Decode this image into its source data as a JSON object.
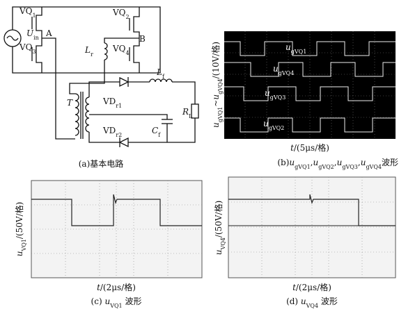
{
  "circuit": {
    "labels": [
      {
        "text": "VQ",
        "sub": "1"
      },
      {
        "text": "VQ",
        "sub": "2"
      },
      {
        "text": "VQ",
        "sub": "3"
      },
      {
        "text": "VQ",
        "sub": "4"
      },
      {
        "text": "U",
        "sub": "in"
      },
      {
        "text": "A"
      },
      {
        "text": "B"
      },
      {
        "text": "L",
        "sub": "r"
      },
      {
        "text": "T"
      },
      {
        "text": "VD",
        "sub": "r1"
      },
      {
        "text": "VD",
        "sub": "r2"
      },
      {
        "text": "L",
        "sub": "f"
      },
      {
        "text": "C",
        "sub": "f"
      },
      {
        "text": "R",
        "sub": "L"
      }
    ],
    "caption": [
      {
        "text": "(a)基本电路"
      }
    ]
  },
  "panel_b": {
    "traces": [
      {
        "text": "u",
        "sub": "gVQ1"
      },
      {
        "text": "u",
        "sub": "gVQ4"
      },
      {
        "text": "u",
        "sub": "gVQ3"
      },
      {
        "text": "u",
        "sub": "gVQ2"
      }
    ],
    "y_label": [
      {
        "text": "u",
        "sub": "gVQ1"
      },
      {
        "text": "~"
      },
      {
        "text": "u",
        "sub": "gVQ4"
      },
      {
        "text": "/(10V/格)"
      }
    ],
    "x_label": [
      {
        "text": "t"
      },
      {
        "text": "/(5μs/格)"
      }
    ],
    "caption": [
      {
        "text": "(b)"
      },
      {
        "text": "u",
        "sub": "gVQ1"
      },
      {
        "text": ","
      },
      {
        "text": "u",
        "sub": "gVQ2"
      },
      {
        "text": ","
      },
      {
        "text": "u",
        "sub": "gVQ3"
      },
      {
        "text": ","
      },
      {
        "text": "u",
        "sub": "gVQ4"
      },
      {
        "text": "波形"
      }
    ]
  },
  "panel_c": {
    "y_label": [
      {
        "text": "u",
        "sub": "VQ1"
      },
      {
        "text": "/(50V/格)"
      }
    ],
    "x_label": [
      {
        "text": "t"
      },
      {
        "text": "/(2μs/格)"
      }
    ],
    "caption": [
      {
        "text": "(c) "
      },
      {
        "text": "u",
        "sub": "VQ1"
      },
      {
        "text": " 波形"
      }
    ]
  },
  "panel_d": {
    "y_label": [
      {
        "text": "u",
        "sub": "VQ4"
      },
      {
        "text": "/(50V/格)"
      }
    ],
    "x_label": [
      {
        "text": "t"
      },
      {
        "text": "/(2μs/格)"
      }
    ],
    "caption": [
      {
        "text": "(d) "
      },
      {
        "text": "u",
        "sub": "VQ4"
      },
      {
        "text": " 波形"
      }
    ]
  }
}
